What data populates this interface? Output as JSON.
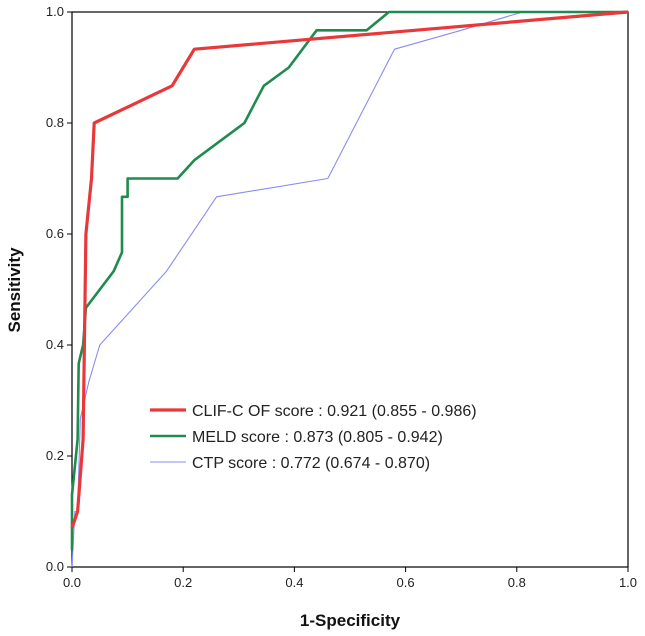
{
  "chart_data": {
    "type": "line",
    "title": "",
    "xlabel": "1-Specificity",
    "ylabel": "Sensitivity",
    "xlim": [
      0,
      1
    ],
    "ylim": [
      0,
      1
    ],
    "x_ticks": [
      "0.0",
      "0.2",
      "0.4",
      "0.6",
      "0.8",
      "1.0"
    ],
    "y_ticks": [
      "0.0",
      "0.2",
      "0.4",
      "0.6",
      "0.8",
      "1.0"
    ],
    "grid": false,
    "legend_position": "bottom-center",
    "series": [
      {
        "name": "CLIF-C OF score : 0.921 (0.855 - 0.986)",
        "color": "#e8383a",
        "points": [
          [
            0,
            0.07
          ],
          [
            0.01,
            0.1
          ],
          [
            0.02,
            0.23
          ],
          [
            0.025,
            0.6
          ],
          [
            0.035,
            0.7
          ],
          [
            0.04,
            0.8
          ],
          [
            0.18,
            0.867
          ],
          [
            0.22,
            0.933
          ],
          [
            1.0,
            1.0
          ]
        ]
      },
      {
        "name": "MELD score : 0.873 (0.805 - 0.942)",
        "color": "#1f8b4c",
        "points": [
          [
            0,
            0.03
          ],
          [
            0,
            0.13
          ],
          [
            0.01,
            0.23
          ],
          [
            0.012,
            0.367
          ],
          [
            0.02,
            0.4
          ],
          [
            0.025,
            0.467
          ],
          [
            0.05,
            0.5
          ],
          [
            0.075,
            0.533
          ],
          [
            0.09,
            0.567
          ],
          [
            0.09,
            0.667
          ],
          [
            0.1,
            0.667
          ],
          [
            0.1,
            0.7
          ],
          [
            0.19,
            0.7
          ],
          [
            0.22,
            0.733
          ],
          [
            0.31,
            0.8
          ],
          [
            0.345,
            0.867
          ],
          [
            0.39,
            0.9
          ],
          [
            0.44,
            0.967
          ],
          [
            0.53,
            0.967
          ],
          [
            0.57,
            1.0
          ],
          [
            1.0,
            1.0
          ]
        ]
      },
      {
        "name": "CTP score : 0.772 (0.674 - 0.870)",
        "color": "#8a8cf2",
        "points": [
          [
            0,
            0.0
          ],
          [
            0.005,
            0.1
          ],
          [
            0.01,
            0.1
          ],
          [
            0.015,
            0.267
          ],
          [
            0.03,
            0.333
          ],
          [
            0.05,
            0.4
          ],
          [
            0.17,
            0.533
          ],
          [
            0.26,
            0.667
          ],
          [
            0.46,
            0.7
          ],
          [
            0.58,
            0.933
          ],
          [
            0.7,
            0.967
          ],
          [
            0.81,
            1.0
          ],
          [
            1.0,
            1.0
          ]
        ]
      }
    ]
  }
}
